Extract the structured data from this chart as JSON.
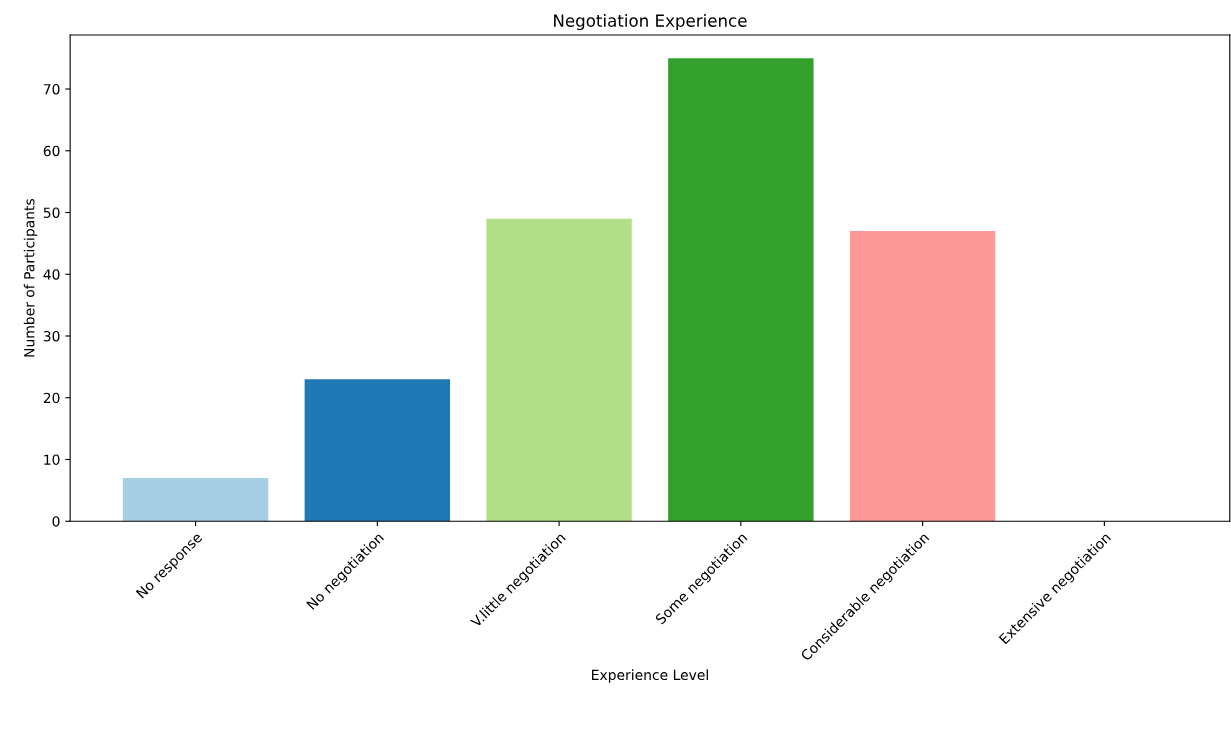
{
  "chart_data": {
    "type": "bar",
    "title": "Negotiation Experience",
    "xlabel": "Experience Level",
    "ylabel": "Number of Participants",
    "categories": [
      "No response",
      "No negotiation",
      "V.little negotiation",
      "Some negotiation",
      "Considerable negotiation",
      "Extensive negotiation"
    ],
    "values": [
      7,
      23,
      49,
      75,
      47,
      0
    ],
    "colors": [
      "#a6cee3",
      "#1f78b4",
      "#b2df8a",
      "#33a02c",
      "#fb9a99",
      "#e31a1c"
    ],
    "ylim": [
      0,
      78.75
    ],
    "yticks": [
      0,
      10,
      20,
      30,
      40,
      50,
      60,
      70
    ],
    "grid": false
  }
}
